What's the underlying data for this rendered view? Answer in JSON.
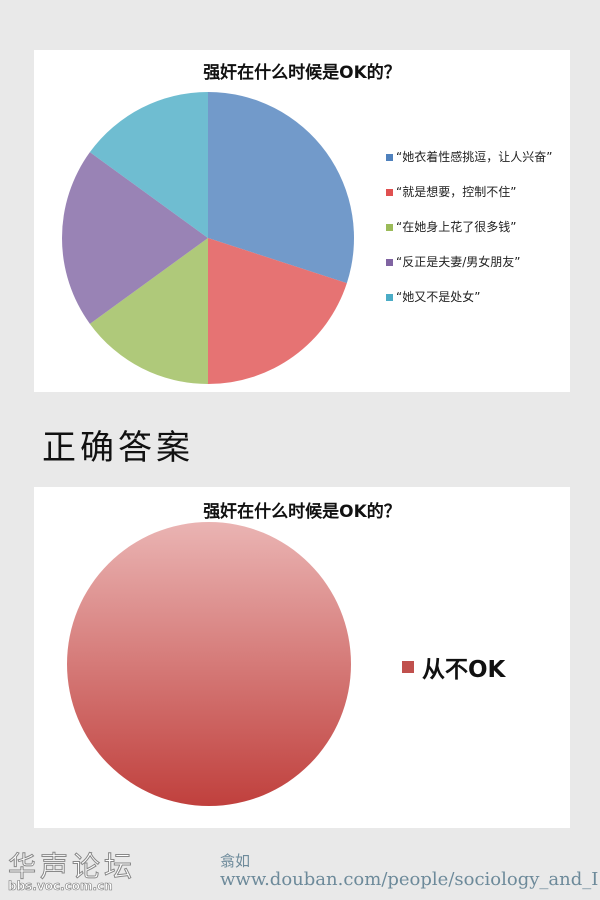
{
  "chart_data": [
    {
      "type": "pie",
      "title": "强奸在什么时候是OK的？",
      "legend_position": "right",
      "categories": [
        "“她衣着性感挑逗，让人兴奋”",
        "“就是想要，控制不住”",
        "“在她身上花了很多钱”",
        "“反正是夫妻/男女朋友”",
        "“她又不是处女”"
      ],
      "values": [
        30,
        20,
        15,
        20,
        15
      ],
      "colors": [
        "#4f81bd",
        "#e05050",
        "#9bbb59",
        "#8064a2",
        "#4bacc6"
      ]
    },
    {
      "type": "pie",
      "title": "强奸在什么时候是OK的？",
      "legend_position": "right",
      "categories": [
        "从不OK"
      ],
      "values": [
        100
      ],
      "colors": [
        "#c0504d"
      ]
    }
  ],
  "heading": "正确答案",
  "watermark": {
    "site": "华声论坛",
    "site_url": "bbs.voc.com.cn",
    "author": "翕如",
    "author_url": "www.douban.com/people/sociology_and_I"
  }
}
